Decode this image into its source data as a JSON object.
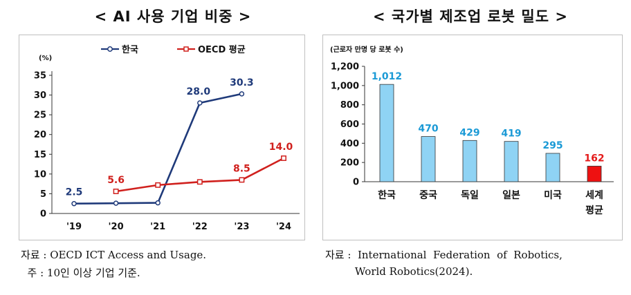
{
  "chart_data": [
    {
      "type": "line",
      "title": "< AI 사용 기업 비중 >",
      "unit_label": "(%)",
      "categories": [
        "'19",
        "'20",
        "'21",
        "'22",
        "'23",
        "'24"
      ],
      "ylim": [
        0,
        35
      ],
      "yticks": [
        "0",
        "5",
        "10",
        "15",
        "20",
        "25",
        "30",
        "35"
      ],
      "series": [
        {
          "name": "한국",
          "color": "#1f3a7a",
          "values": [
            2.5,
            2.6,
            2.7,
            28.0,
            30.3,
            null
          ],
          "labels": [
            "2.5",
            "",
            "",
            "28.0",
            "30.3",
            ""
          ]
        },
        {
          "name": "OECD 평균",
          "color": "#d0201d",
          "values": [
            null,
            5.6,
            7.2,
            8.0,
            8.5,
            14.0
          ],
          "labels": [
            "",
            "5.6",
            "",
            "",
            "8.5",
            "14.0"
          ]
        }
      ],
      "legend": "top"
    },
    {
      "type": "bar",
      "title": "< 국가별 제조업 로봇 밀도 >",
      "unit_label": "(근로자 만명 당 로봇 수)",
      "categories": [
        "한국",
        "중국",
        "독일",
        "일본",
        "미국",
        "세계\n평균"
      ],
      "values": [
        1012,
        470,
        429,
        419,
        295,
        162
      ],
      "value_labels": [
        "1,012",
        "470",
        "429",
        "419",
        "295",
        "162"
      ],
      "ylim": [
        0,
        1200
      ],
      "yticks": [
        "0",
        "200",
        "400",
        "600",
        "800",
        "1,000",
        "1,200"
      ],
      "bar_color": "#8fd3f4",
      "highlight_color": "#ee1111",
      "label_color": "#1b9ad6",
      "highlight_label_color": "#e41a1a"
    }
  ],
  "notes_left": {
    "line1": "자료 : OECD ICT Access and Usage.",
    "line2": "  주 : 10인 이상 기업 기준."
  },
  "notes_right": {
    "line1": "자료 :  International  Federation  of  Robotics,",
    "line2": "         World Robotics(2024)."
  }
}
